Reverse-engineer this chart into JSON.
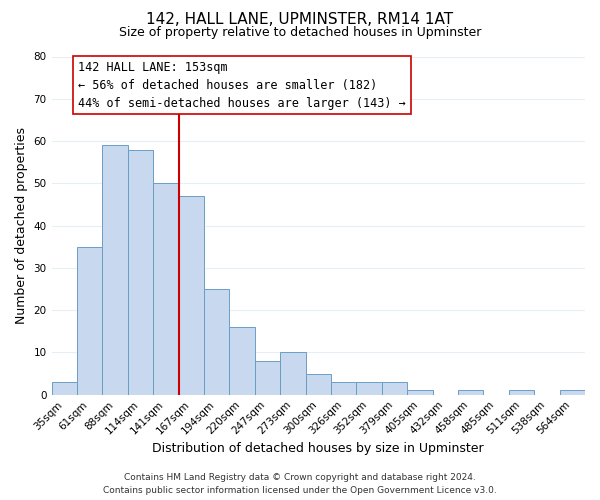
{
  "title": "142, HALL LANE, UPMINSTER, RM14 1AT",
  "subtitle": "Size of property relative to detached houses in Upminster",
  "xlabel": "Distribution of detached houses by size in Upminster",
  "ylabel": "Number of detached properties",
  "bar_labels": [
    "35sqm",
    "61sqm",
    "88sqm",
    "114sqm",
    "141sqm",
    "167sqm",
    "194sqm",
    "220sqm",
    "247sqm",
    "273sqm",
    "300sqm",
    "326sqm",
    "352sqm",
    "379sqm",
    "405sqm",
    "432sqm",
    "458sqm",
    "485sqm",
    "511sqm",
    "538sqm",
    "564sqm"
  ],
  "bar_values": [
    3,
    35,
    59,
    58,
    50,
    47,
    25,
    16,
    8,
    10,
    5,
    3,
    3,
    3,
    1,
    0,
    1,
    0,
    1,
    0,
    1
  ],
  "bar_color": "#c8d9ef",
  "bar_edge_color": "#6a9ec5",
  "vline_x_index": 4.5,
  "vline_color": "#cc0000",
  "ylim": [
    0,
    80
  ],
  "yticks": [
    0,
    10,
    20,
    30,
    40,
    50,
    60,
    70,
    80
  ],
  "annotation_text_line1": "142 HALL LANE: 153sqm",
  "annotation_text_line2": "← 56% of detached houses are smaller (182)",
  "annotation_text_line3": "44% of semi-detached houses are larger (143) →",
  "footer_line1": "Contains HM Land Registry data © Crown copyright and database right 2024.",
  "footer_line2": "Contains public sector information licensed under the Open Government Licence v3.0.",
  "plot_bg_color": "#ffffff",
  "fig_bg_color": "#ffffff",
  "grid_color": "#e8eef5",
  "title_fontsize": 11,
  "subtitle_fontsize": 9,
  "axis_label_fontsize": 9,
  "tick_fontsize": 7.5,
  "footer_fontsize": 6.5,
  "annotation_fontsize": 8.5
}
